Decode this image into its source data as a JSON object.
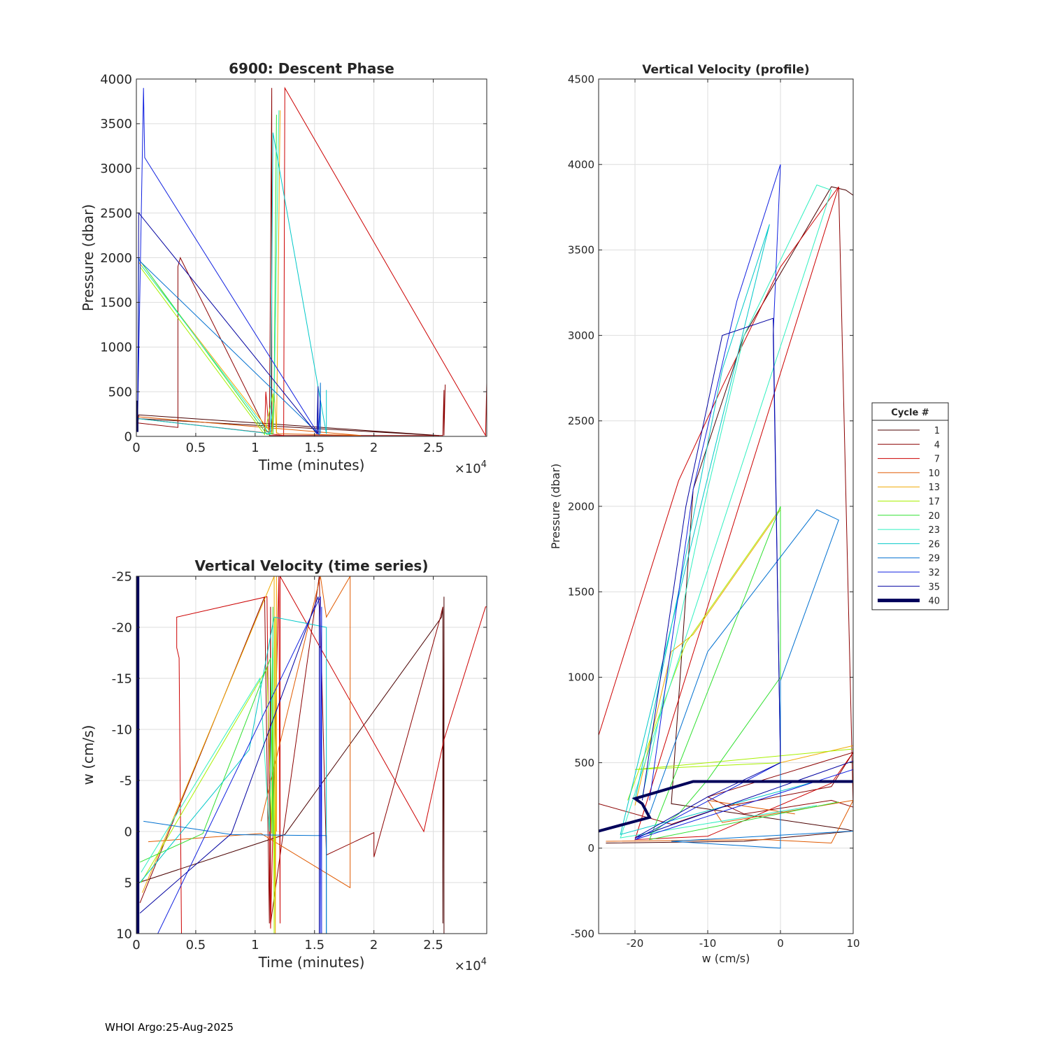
{
  "footer": "WHOI Argo:25-Aug-2025",
  "palette": {
    "c1": "#4a0000",
    "c4": "#8b0000",
    "c7": "#cc0000",
    "c10": "#e05a00",
    "c13": "#f0a800",
    "c17": "#a8f000",
    "c20": "#30e030",
    "c23": "#30f0c0",
    "c26": "#00c8c8",
    "c29": "#0070d0",
    "c32": "#1020e0",
    "c35": "#0000a0",
    "c40": "#00005a"
  },
  "chart_data": [
    {
      "id": "descent",
      "type": "line",
      "title": "6900: Descent Phase",
      "xlabel": "Time (minutes)",
      "ylabel": "Pressure (dbar)",
      "xlim": [
        0,
        29500
      ],
      "ylim": [
        4000,
        0
      ],
      "x_ticks": [
        0,
        5000,
        10000,
        15000,
        20000,
        25000
      ],
      "x_tick_labels": [
        "0",
        "0.5",
        "1",
        "1.5",
        "2",
        "2.5"
      ],
      "y_ticks": [
        0,
        500,
        1000,
        1500,
        2000,
        2500,
        3000,
        3500,
        4000
      ],
      "y_tick_labels": [
        "0",
        "500",
        "1000",
        "1500",
        "2000",
        "2500",
        "3000",
        "3500",
        "4000"
      ],
      "x_exponent": "×10",
      "x_exponent_power": "4",
      "series": [
        {
          "name": "1",
          "color": "#4a0000",
          "width": 1,
          "x": [
            0,
            25500,
            200,
            100
          ],
          "y": [
            200,
            10,
            240,
            120
          ]
        },
        {
          "name": "4",
          "color": "#8b0000",
          "width": 1,
          "x": [
            100,
            3500,
            3500,
            3700,
            11000,
            11400,
            11400,
            11200,
            25800,
            25900,
            25900,
            26000
          ],
          "y": [
            150,
            100,
            1900,
            2000,
            50,
            60,
            3900,
            10,
            10,
            520,
            10,
            580
          ]
        },
        {
          "name": "7",
          "color": "#cc0000",
          "width": 1,
          "x": [
            100,
            10800,
            10900,
            11200,
            12400,
            12500,
            29400,
            29500,
            29500
          ],
          "y": [
            200,
            40,
            500,
            30,
            10,
            3900,
            10,
            600,
            10
          ]
        },
        {
          "name": "10",
          "color": "#e05a00",
          "width": 1,
          "x": [
            100,
            18900,
            12000,
            11800
          ],
          "y": [
            220,
            10,
            30,
            40
          ]
        },
        {
          "name": "13",
          "color": "#f0a800",
          "width": 1,
          "x": [
            200,
            11400,
            11600,
            11800,
            12100
          ],
          "y": [
            1950,
            30,
            500,
            30,
            3650
          ]
        },
        {
          "name": "17",
          "color": "#a8f000",
          "width": 1,
          "x": [
            300,
            10800,
            11500,
            11500
          ],
          "y": [
            1900,
            20,
            480,
            30
          ]
        },
        {
          "name": "20",
          "color": "#30e030",
          "width": 1,
          "x": [
            400,
            11000,
            11500,
            11600,
            11800
          ],
          "y": [
            1950,
            20,
            30,
            500,
            3600
          ]
        },
        {
          "name": "23",
          "color": "#30f0c0",
          "width": 1,
          "x": [
            500,
            11200,
            11600,
            12000
          ],
          "y": [
            1900,
            30,
            400,
            3650
          ]
        },
        {
          "name": "26",
          "color": "#00c8c8",
          "width": 1,
          "x": [
            100,
            11300,
            11500,
            16000,
            16000
          ],
          "y": [
            200,
            30,
            3400,
            30,
            520
          ]
        },
        {
          "name": "29",
          "color": "#0070d0",
          "width": 1,
          "x": [
            100,
            200,
            300,
            15400,
            15500,
            15500
          ],
          "y": [
            220,
            2000,
            1960,
            20,
            600,
            30
          ]
        },
        {
          "name": "32",
          "color": "#1020e0",
          "width": 1,
          "x": [
            100,
            600,
            700,
            15300,
            15500
          ],
          "y": [
            150,
            3900,
            3120,
            30,
            400
          ]
        },
        {
          "name": "35",
          "color": "#0000a0",
          "width": 1,
          "x": [
            100,
            150,
            200,
            15200,
            15300,
            15300
          ],
          "y": [
            80,
            1000,
            2500,
            30,
            560,
            30
          ]
        },
        {
          "name": "40",
          "color": "#00005a",
          "width": 3,
          "x": [
            50,
            50,
            80,
            80
          ],
          "y": [
            50,
            400,
            50,
            200
          ]
        }
      ]
    },
    {
      "id": "w_time",
      "type": "line",
      "title": "Vertical Velocity (time series)",
      "xlabel": "Time (minutes)",
      "ylabel": "w (cm/s)",
      "xlim": [
        0,
        29500
      ],
      "ylim": [
        -25,
        10
      ],
      "x_ticks": [
        0,
        5000,
        10000,
        15000,
        20000,
        25000
      ],
      "x_tick_labels": [
        "0",
        "0.5",
        "1",
        "1.5",
        "2",
        "2.5"
      ],
      "y_ticks": [
        10,
        5,
        0,
        -5,
        -10,
        -15,
        -20,
        -25
      ],
      "y_tick_labels": [
        "10",
        "5",
        "0",
        "-5",
        "-10",
        "-15",
        "-20",
        "-25"
      ],
      "x_exponent": "×10",
      "x_exponent_power": "4",
      "series": [
        {
          "name": "1",
          "color": "#4a0000",
          "width": 1,
          "x": [
            200,
            12500,
            25700,
            25800,
            25800,
            25900,
            25900
          ],
          "y": [
            5,
            0.3,
            -21,
            -22,
            9,
            -23,
            10
          ]
        },
        {
          "name": "4",
          "color": "#8b0000",
          "width": 1,
          "x": [
            300,
            10800,
            11200,
            11300,
            11300,
            15400,
            16000,
            20000,
            20000,
            25600,
            25800
          ],
          "y": [
            7,
            -23,
            9,
            -22,
            9,
            -25,
            2.3,
            0.1,
            2.5,
            -21,
            -22
          ]
        },
        {
          "name": "7",
          "color": "#cc0000",
          "width": 1,
          "x": [
            3800,
            3600,
            3400,
            3400,
            11000,
            11300,
            12000,
            12100,
            12100,
            24200,
            25900,
            29400,
            29500,
            29500
          ],
          "y": [
            10,
            -17,
            -18,
            -21,
            -23,
            9.5,
            -25,
            9,
            -25,
            0,
            -9,
            -22,
            -22,
            10
          ]
        },
        {
          "name": "10",
          "color": "#e05a00",
          "width": 1,
          "x": [
            1000,
            10500,
            18000,
            18000,
            16000,
            15500,
            10500
          ],
          "y": [
            1,
            0.2,
            5.5,
            -25,
            -21,
            -25,
            -1
          ]
        },
        {
          "name": "13",
          "color": "#f0a800",
          "width": 1,
          "x": [
            500,
            11600,
            11700,
            11800,
            11800
          ],
          "y": [
            6,
            -25,
            10,
            -25,
            0
          ]
        },
        {
          "name": "17",
          "color": "#a8f000",
          "width": 1,
          "x": [
            400,
            11000,
            11400,
            11500,
            11600,
            11700
          ],
          "y": [
            5,
            -16,
            0.2,
            -18,
            10,
            -21
          ]
        },
        {
          "name": "20",
          "color": "#30e030",
          "width": 1,
          "x": [
            300,
            5600,
            11300,
            11500,
            11500
          ],
          "y": [
            3,
            0.2,
            -17,
            0.5,
            -22
          ]
        },
        {
          "name": "23",
          "color": "#30f0c0",
          "width": 1,
          "x": [
            400,
            10400,
            11200,
            11500
          ],
          "y": [
            4,
            -15,
            0,
            -20
          ]
        },
        {
          "name": "26",
          "color": "#00c8c8",
          "width": 1,
          "x": [
            300,
            9500,
            11600,
            16000,
            16000
          ],
          "y": [
            5,
            -8,
            -21,
            -20,
            10
          ]
        },
        {
          "name": "29",
          "color": "#0070d0",
          "width": 1,
          "x": [
            600,
            8000,
            15000,
            15500,
            16000,
            16000
          ],
          "y": [
            -1,
            0.3,
            0.4,
            0.4,
            0.4,
            10
          ]
        },
        {
          "name": "32",
          "color": "#1020e0",
          "width": 1,
          "x": [
            1800,
            15500,
            15500,
            15600,
            15600
          ],
          "y": [
            10,
            -23,
            10,
            -22,
            10
          ]
        },
        {
          "name": "35",
          "color": "#0000a0",
          "width": 1,
          "x": [
            300,
            8000,
            15300,
            15400,
            15400
          ],
          "y": [
            8,
            0.2,
            -23,
            -22,
            10
          ]
        },
        {
          "name": "40",
          "color": "#00005a",
          "width": 3,
          "x": [
            60,
            60,
            100,
            100,
            160,
            160
          ],
          "y": [
            10,
            -25,
            10,
            -25,
            10,
            -25
          ]
        }
      ]
    },
    {
      "id": "w_profile",
      "type": "line",
      "title": "Vertical Velocity (profile)",
      "xlabel": "w (cm/s)",
      "ylabel": "Pressure (dbar)",
      "xlim": [
        -25,
        10
      ],
      "ylim": [
        4500,
        -500
      ],
      "x_ticks": [
        -20,
        -10,
        0,
        10
      ],
      "x_tick_labels": [
        "-20",
        "-10",
        "0",
        "10"
      ],
      "y_ticks": [
        -500,
        0,
        500,
        1000,
        1500,
        2000,
        2500,
        3000,
        3500,
        4000,
        4500
      ],
      "y_tick_labels": [
        "-500",
        "0",
        "500",
        "1000",
        "1500",
        "2000",
        "2500",
        "3000",
        "3500",
        "4000",
        "4500"
      ],
      "legend_title": "Cycle #",
      "legend_position": "right",
      "series": [
        {
          "name": "1",
          "color": "#4a0000",
          "width": 1,
          "x": [
            -24,
            -5,
            10,
            9,
            -15,
            -12,
            -5,
            7,
            9,
            10
          ],
          "y": [
            30,
            40,
            100,
            110,
            260,
            2100,
            3000,
            3870,
            3850,
            3820
          ]
        },
        {
          "name": "4",
          "color": "#8b0000",
          "width": 1,
          "x": [
            -25,
            -15,
            -8,
            7,
            10,
            -10,
            -5,
            7,
            10,
            8
          ],
          "y": [
            260,
            140,
            240,
            360,
            560,
            300,
            200,
            280,
            240,
            3870
          ]
        },
        {
          "name": "7",
          "color": "#cc0000",
          "width": 1,
          "x": [
            -25,
            -14,
            -8,
            0,
            8,
            -20,
            -10,
            7,
            10
          ],
          "y": [
            660,
            2150,
            2700,
            3400,
            3870,
            50,
            70,
            380,
            560
          ]
        },
        {
          "name": "10",
          "color": "#e05a00",
          "width": 1,
          "x": [
            -24,
            -2,
            7,
            10,
            -8,
            -10,
            2
          ],
          "y": [
            40,
            50,
            30,
            280,
            150,
            280,
            200
          ]
        },
        {
          "name": "13",
          "color": "#f0a800",
          "width": 1,
          "x": [
            -20,
            -15,
            -12,
            0,
            0,
            10
          ],
          "y": [
            250,
            1150,
            1250,
            1980,
            500,
            600
          ]
        },
        {
          "name": "17",
          "color": "#a8f000",
          "width": 1,
          "x": [
            -21,
            -13,
            0,
            0,
            0,
            -20,
            10
          ],
          "y": [
            280,
            1200,
            1990,
            1000,
            500,
            460,
            580
          ]
        },
        {
          "name": "20",
          "color": "#30e030",
          "width": 1,
          "x": [
            -18,
            -14,
            -10,
            0,
            0,
            0,
            -18,
            8
          ],
          "y": [
            80,
            200,
            400,
            1000,
            1550,
            2000,
            50,
            270
          ]
        },
        {
          "name": "23",
          "color": "#30f0c0",
          "width": 1,
          "x": [
            -19,
            -14,
            -10,
            -5,
            5,
            7,
            -22,
            5
          ],
          "y": [
            300,
            1300,
            2100,
            3000,
            3880,
            3850,
            60,
            250
          ]
        },
        {
          "name": "26",
          "color": "#00c8c8",
          "width": 1,
          "x": [
            -20,
            -14,
            -8,
            -1.5,
            -22,
            4
          ],
          "y": [
            280,
            1500,
            2800,
            3650,
            80,
            380
          ]
        },
        {
          "name": "29",
          "color": "#0070d0",
          "width": 1,
          "x": [
            -18,
            -10,
            5,
            8,
            0,
            0,
            -15,
            10
          ],
          "y": [
            200,
            1150,
            1980,
            1920,
            980,
            0,
            40,
            100
          ]
        },
        {
          "name": "32",
          "color": "#1020e0",
          "width": 1,
          "x": [
            -18,
            -12,
            -6,
            0,
            -1,
            0,
            -20,
            10
          ],
          "y": [
            280,
            2100,
            3200,
            4000,
            3000,
            500,
            50,
            460
          ]
        },
        {
          "name": "35",
          "color": "#0000a0",
          "width": 1,
          "x": [
            -19,
            -13,
            -8,
            -1,
            0,
            -10,
            -20,
            10
          ],
          "y": [
            280,
            2000,
            3000,
            3100,
            500,
            300,
            60,
            510
          ]
        },
        {
          "name": "40",
          "color": "#00005a",
          "width": 4,
          "x": [
            -25,
            -18,
            -19,
            -20,
            -12,
            10
          ],
          "y": [
            100,
            180,
            260,
            290,
            390,
            390
          ]
        }
      ]
    }
  ]
}
